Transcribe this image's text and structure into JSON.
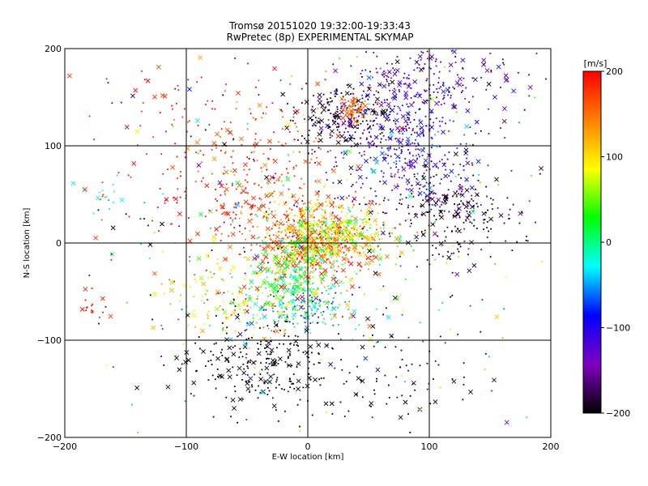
{
  "chart_data": {
    "type": "scatter",
    "title": "Tromsø 20151020 19:32:00-19:33:43",
    "subtitle": "RwPretec (8p) EXPERIMENTAL SKYMAP",
    "xlabel": "E-W location [km]",
    "ylabel": "N-S location [km]",
    "xlim": [
      -200,
      200
    ],
    "ylim": [
      -200,
      200
    ],
    "xticks": [
      "−200",
      "−100",
      "0",
      "100",
      "200"
    ],
    "yticks": [
      "−200",
      "−100",
      "0",
      "100",
      "200"
    ],
    "grid": true,
    "markers": [
      "x",
      "dot"
    ],
    "colorbar": {
      "label": "[m/s]",
      "range": [
        -200,
        200
      ],
      "ticks": [
        "200",
        "100",
        "0",
        "−100",
        "−200"
      ],
      "colors": [
        "#000000",
        "#8000c0",
        "#0000ff",
        "#00ffff",
        "#00ff00",
        "#ffff00",
        "#ff8000",
        "#ff0000"
      ]
    },
    "clusters": [
      {
        "x": 5,
        "y": 0,
        "sx": 22,
        "sy": 18,
        "v": 150,
        "vs": 40,
        "n": 520
      },
      {
        "x": 20,
        "y": 10,
        "sx": 22,
        "sy": 14,
        "v": 80,
        "vs": 40,
        "n": 320
      },
      {
        "x": -5,
        "y": -30,
        "sx": 18,
        "sy": 22,
        "v": 20,
        "vs": 40,
        "n": 260
      },
      {
        "x": 0,
        "y": -65,
        "sx": 22,
        "sy": 12,
        "v": -30,
        "vs": 40,
        "n": 140
      },
      {
        "x": -35,
        "y": -125,
        "sx": 28,
        "sy": 20,
        "v": -195,
        "vs": 8,
        "n": 240
      },
      {
        "x": 30,
        "y": 130,
        "sx": 22,
        "sy": 14,
        "v": -195,
        "vs": 8,
        "n": 200
      },
      {
        "x": 38,
        "y": 138,
        "sx": 6,
        "sy": 6,
        "v": 160,
        "vs": 15,
        "n": 70
      },
      {
        "x": 80,
        "y": 100,
        "sx": 30,
        "sy": 35,
        "v": -110,
        "vs": 30,
        "n": 420
      },
      {
        "x": 120,
        "y": 30,
        "sx": 28,
        "sy": 25,
        "v": -185,
        "vs": 15,
        "n": 220
      },
      {
        "x": 100,
        "y": 170,
        "sx": 35,
        "sy": 22,
        "v": -150,
        "vs": 30,
        "n": 200
      },
      {
        "x": -40,
        "y": 60,
        "sx": 45,
        "sy": 55,
        "v": 180,
        "vs": 25,
        "n": 360
      },
      {
        "x": -60,
        "y": -60,
        "sx": 30,
        "sy": 20,
        "v": 90,
        "vs": 50,
        "n": 140
      },
      {
        "x": -165,
        "y": 40,
        "sx": 10,
        "sy": 10,
        "v": -30,
        "vs": 10,
        "n": 12
      },
      {
        "x": -180,
        "y": -65,
        "sx": 8,
        "sy": 8,
        "v": 190,
        "vs": 10,
        "n": 16
      },
      {
        "x": -100,
        "y": 120,
        "sx": 50,
        "sy": 50,
        "v": 190,
        "vs": 15,
        "n": 70
      },
      {
        "x": 60,
        "y": -140,
        "sx": 40,
        "sy": 25,
        "v": -190,
        "vs": 15,
        "n": 90
      },
      {
        "x": 0,
        "y": 0,
        "sx": 100,
        "sy": 100,
        "v": 0,
        "vs": 160,
        "n": 420
      }
    ]
  }
}
